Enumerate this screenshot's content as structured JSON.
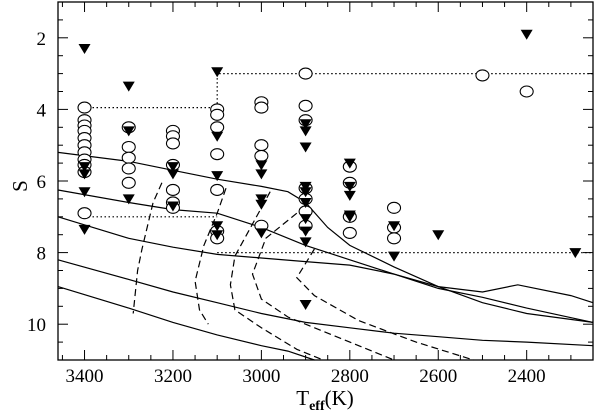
{
  "chart_data": {
    "type": "scatter",
    "title": "",
    "xlabel": "T",
    "xlabel_sub": "eff",
    "xlabel_unit": "(K)",
    "ylabel": "S",
    "xlim": [
      3460,
      2250
    ],
    "ylim": [
      11,
      1
    ],
    "x_ticks": [
      3400,
      3200,
      3000,
      2800,
      2600,
      2400
    ],
    "x_tick_labels": [
      "3400",
      "3200",
      "3000",
      "2800",
      "2600",
      "2400"
    ],
    "y_ticks": [
      2,
      4,
      6,
      8,
      10
    ],
    "y_tick_labels": [
      "2",
      "4",
      "6",
      "8",
      "10"
    ],
    "grid": false,
    "legend": "none",
    "series": [
      {
        "marker": "open-circle",
        "points": [
          [
            3400,
            3.95
          ],
          [
            3400,
            4.3
          ],
          [
            3400,
            4.45
          ],
          [
            3400,
            4.6
          ],
          [
            3400,
            4.8
          ],
          [
            3400,
            5.0
          ],
          [
            3400,
            5.2
          ],
          [
            3400,
            5.4
          ],
          [
            3400,
            5.55
          ],
          [
            3400,
            5.75
          ],
          [
            3400,
            6.9
          ],
          [
            3300,
            4.5
          ],
          [
            3300,
            5.05
          ],
          [
            3300,
            5.35
          ],
          [
            3300,
            5.65
          ],
          [
            3300,
            6.05
          ],
          [
            3200,
            4.6
          ],
          [
            3200,
            4.75
          ],
          [
            3200,
            4.95
          ],
          [
            3200,
            5.55
          ],
          [
            3200,
            6.25
          ],
          [
            3200,
            6.6
          ],
          [
            3200,
            6.75
          ],
          [
            3100,
            4.0
          ],
          [
            3100,
            4.15
          ],
          [
            3100,
            4.5
          ],
          [
            3100,
            5.25
          ],
          [
            3100,
            6.25
          ],
          [
            3100,
            7.4
          ],
          [
            3100,
            7.6
          ],
          [
            3000,
            3.8
          ],
          [
            3000,
            3.95
          ],
          [
            3000,
            5.0
          ],
          [
            3000,
            5.3
          ],
          [
            3000,
            7.25
          ],
          [
            2900,
            3.0
          ],
          [
            2900,
            3.9
          ],
          [
            2900,
            4.3
          ],
          [
            2900,
            6.2
          ],
          [
            2900,
            6.5
          ],
          [
            2900,
            6.85
          ],
          [
            2900,
            7.25
          ],
          [
            2800,
            5.6
          ],
          [
            2800,
            6.05
          ],
          [
            2800,
            7.0
          ],
          [
            2800,
            7.45
          ],
          [
            2700,
            6.75
          ],
          [
            2700,
            7.3
          ],
          [
            2700,
            7.6
          ],
          [
            2500,
            3.05
          ],
          [
            2400,
            3.5
          ]
        ]
      },
      {
        "marker": "filled-triangle-down",
        "points": [
          [
            3400,
            2.3
          ],
          [
            3400,
            5.6
          ],
          [
            3400,
            5.8
          ],
          [
            3400,
            6.3
          ],
          [
            3400,
            7.35
          ],
          [
            3300,
            3.35
          ],
          [
            3300,
            4.6
          ],
          [
            3300,
            6.5
          ],
          [
            3200,
            5.6
          ],
          [
            3200,
            5.8
          ],
          [
            3200,
            6.7
          ],
          [
            3100,
            2.95
          ],
          [
            3100,
            4.75
          ],
          [
            3100,
            5.85
          ],
          [
            3100,
            7.25
          ],
          [
            3100,
            7.5
          ],
          [
            3000,
            5.55
          ],
          [
            3000,
            5.8
          ],
          [
            3000,
            6.5
          ],
          [
            3000,
            6.65
          ],
          [
            3000,
            7.45
          ],
          [
            2900,
            4.4
          ],
          [
            2900,
            4.6
          ],
          [
            2900,
            5.05
          ],
          [
            2900,
            6.15
          ],
          [
            2900,
            6.3
          ],
          [
            2900,
            6.6
          ],
          [
            2900,
            7.05
          ],
          [
            2900,
            7.4
          ],
          [
            2900,
            7.7
          ],
          [
            2900,
            9.45
          ],
          [
            2800,
            5.5
          ],
          [
            2800,
            6.15
          ],
          [
            2800,
            6.4
          ],
          [
            2800,
            6.95
          ],
          [
            2800,
            7.0
          ],
          [
            2700,
            7.25
          ],
          [
            2700,
            8.1
          ],
          [
            2600,
            7.5
          ],
          [
            2400,
            1.9
          ],
          [
            2290,
            8.0
          ]
        ]
      },
      {
        "style": "solid",
        "lines": [
          [
            [
              3460,
              5.2
            ],
            [
              3300,
              5.45
            ],
            [
              3200,
              5.7
            ],
            [
              3100,
              5.95
            ],
            [
              3000,
              6.15
            ],
            [
              2940,
              6.3
            ],
            [
              2900,
              6.6
            ],
            [
              2850,
              7.3
            ],
            [
              2800,
              7.8
            ],
            [
              2700,
              8.4
            ],
            [
              2600,
              8.95
            ],
            [
              2500,
              9.4
            ],
            [
              2400,
              9.7
            ],
            [
              2250,
              9.95
            ]
          ],
          [
            [
              3460,
              6.25
            ],
            [
              3300,
              6.6
            ],
            [
              3200,
              6.8
            ],
            [
              3100,
              6.9
            ],
            [
              3000,
              7.3
            ],
            [
              2900,
              7.8
            ],
            [
              2800,
              8.2
            ],
            [
              2700,
              8.6
            ],
            [
              2600,
              8.95
            ],
            [
              2500,
              9.1
            ],
            [
              2420,
              8.9
            ],
            [
              2300,
              9.2
            ],
            [
              2250,
              9.4
            ]
          ],
          [
            [
              3460,
              7.0
            ],
            [
              3300,
              7.6
            ],
            [
              3200,
              7.85
            ],
            [
              3100,
              8.05
            ],
            [
              3000,
              8.15
            ],
            [
              2900,
              8.25
            ],
            [
              2800,
              8.35
            ],
            [
              2700,
              8.6
            ],
            [
              2600,
              9.0
            ],
            [
              2500,
              9.25
            ],
            [
              2400,
              9.55
            ],
            [
              2250,
              9.95
            ]
          ],
          [
            [
              3460,
              8.2
            ],
            [
              3300,
              8.75
            ],
            [
              3200,
              9.1
            ],
            [
              3100,
              9.4
            ],
            [
              3000,
              9.7
            ],
            [
              2900,
              9.95
            ],
            [
              2800,
              10.1
            ],
            [
              2700,
              10.25
            ],
            [
              2600,
              10.35
            ],
            [
              2500,
              10.45
            ],
            [
              2400,
              10.5
            ],
            [
              2250,
              10.6
            ]
          ],
          [
            [
              3460,
              8.95
            ],
            [
              3300,
              9.55
            ],
            [
              3200,
              9.95
            ],
            [
              3100,
              10.3
            ],
            [
              3000,
              10.6
            ],
            [
              2940,
              10.75
            ],
            [
              2880,
              11.0
            ]
          ]
        ]
      },
      {
        "style": "dashed",
        "lines": [
          [
            [
              3225,
              6.05
            ],
            [
              3245,
              6.6
            ],
            [
              3270,
              7.9
            ],
            [
              3280,
              8.5
            ],
            [
              3290,
              9.7
            ]
          ],
          [
            [
              3080,
              6.2
            ],
            [
              3100,
              6.9
            ],
            [
              3130,
              7.8
            ],
            [
              3150,
              8.8
            ],
            [
              3140,
              9.6
            ],
            [
              3120,
              10.0
            ]
          ],
          [
            [
              2980,
              6.3
            ],
            [
              3020,
              7.2
            ],
            [
              3060,
              8.1
            ],
            [
              3070,
              8.9
            ],
            [
              3060,
              9.6
            ],
            [
              3000,
              10.1
            ],
            [
              2920,
              10.7
            ],
            [
              2860,
              11.0
            ]
          ],
          [
            [
              2920,
              6.9
            ],
            [
              2990,
              7.6
            ],
            [
              3020,
              8.6
            ],
            [
              3000,
              9.3
            ],
            [
              2940,
              9.8
            ],
            [
              2800,
              10.5
            ],
            [
              2700,
              11.0
            ]
          ],
          [
            [
              2880,
              7.9
            ],
            [
              2920,
              8.7
            ],
            [
              2880,
              9.2
            ],
            [
              2780,
              9.9
            ],
            [
              2650,
              10.5
            ],
            [
              2520,
              11.0
            ]
          ]
        ]
      },
      {
        "style": "dotted",
        "lines": [
          [
            [
              3400,
              3.95
            ],
            [
              3100,
              3.95
            ]
          ],
          [
            [
              3100,
              3.95
            ],
            [
              3100,
              3.0
            ],
            [
              2250,
              3.0
            ]
          ],
          [
            [
              3400,
              7.0
            ],
            [
              3100,
              7.0
            ]
          ],
          [
            [
              3100,
              8.0
            ],
            [
              2250,
              8.0
            ]
          ]
        ]
      }
    ]
  }
}
